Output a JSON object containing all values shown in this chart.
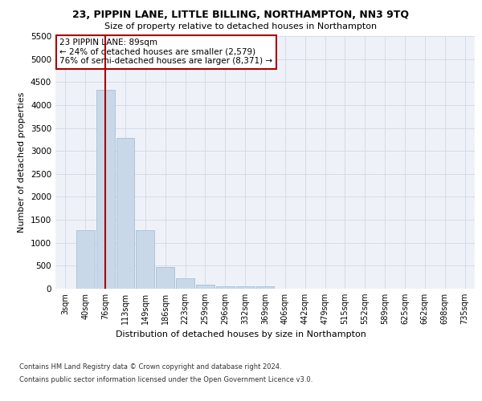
{
  "title1": "23, PIPPIN LANE, LITTLE BILLING, NORTHAMPTON, NN3 9TQ",
  "title2": "Size of property relative to detached houses in Northampton",
  "xlabel": "Distribution of detached houses by size in Northampton",
  "ylabel": "Number of detached properties",
  "bar_labels": [
    "3sqm",
    "40sqm",
    "76sqm",
    "113sqm",
    "149sqm",
    "186sqm",
    "223sqm",
    "259sqm",
    "296sqm",
    "332sqm",
    "369sqm",
    "406sqm",
    "442sqm",
    "479sqm",
    "515sqm",
    "552sqm",
    "589sqm",
    "625sqm",
    "662sqm",
    "698sqm",
    "735sqm"
  ],
  "bar_values": [
    0,
    1270,
    4330,
    3290,
    1270,
    470,
    220,
    95,
    60,
    55,
    60,
    0,
    0,
    0,
    0,
    0,
    0,
    0,
    0,
    0,
    0
  ],
  "bar_color": "#c8d8e8",
  "bar_edgecolor": "#a0b8cc",
  "grid_color": "#d0d8e8",
  "bg_color": "#eef2f8",
  "vline_x": 2.0,
  "vline_color": "#aa0000",
  "annotation_text": "23 PIPPIN LANE: 89sqm\n← 24% of detached houses are smaller (2,579)\n76% of semi-detached houses are larger (8,371) →",
  "annotation_box_color": "#ffffff",
  "annotation_box_edgecolor": "#aa0000",
  "ylim": [
    0,
    5500
  ],
  "yticks": [
    0,
    500,
    1000,
    1500,
    2000,
    2500,
    3000,
    3500,
    4000,
    4500,
    5000,
    5500
  ],
  "footnote1": "Contains HM Land Registry data © Crown copyright and database right 2024.",
  "footnote2": "Contains public sector information licensed under the Open Government Licence v3.0."
}
